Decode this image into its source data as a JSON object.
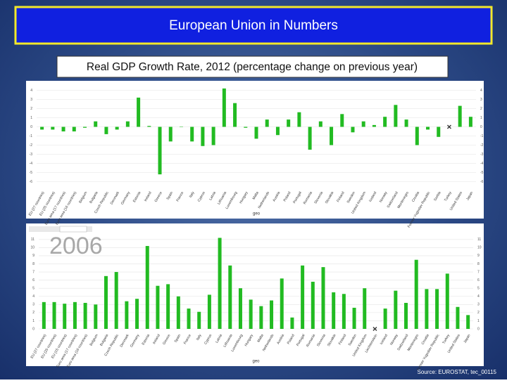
{
  "slide": {
    "title": "European Union in Numbers",
    "subtitle": "Real GDP Growth Rate, 2012 (percentage change on previous year)",
    "source": "Source: EUROSTAT, tec_00115"
  },
  "chart_data": [
    {
      "type": "bar",
      "color": "#22bb22",
      "x_label": "geo",
      "categories": [
        "EU (27 countries)",
        "EU (25 countries)",
        "Euro area (17 countries)",
        "Euro area (16 countries)",
        "Belgium",
        "Bulgaria",
        "Czech Republic",
        "Denmark",
        "Germany",
        "Estonia",
        "Ireland",
        "Greece",
        "Spain",
        "France",
        "Italy",
        "Cyprus",
        "Latvia",
        "Lithuania",
        "Luxembourg",
        "Hungary",
        "Malta",
        "Netherlands",
        "Austria",
        "Poland",
        "Portugal",
        "Romania",
        "Slovenia",
        "Slovakia",
        "Finland",
        "Sweden",
        "United Kingdom",
        "Iceland",
        "Norway",
        "Switzerland",
        "Montenegro",
        "Croatia",
        "Former Yugoslav Republic",
        "Serbia",
        "Turkey",
        "United States",
        "Japan"
      ],
      "values": [
        -0.3,
        -0.3,
        -0.5,
        -0.5,
        -0.1,
        0.6,
        -0.8,
        -0.3,
        0.6,
        3.2,
        0.1,
        -5.2,
        -1.6,
        0,
        -1.6,
        -2.1,
        -2,
        4.2,
        2.6,
        -0.1,
        -1.3,
        0.8,
        -0.9,
        0.8,
        1.6,
        -2.5,
        0.6,
        -2,
        1.4,
        -0.6,
        0.6,
        0.2,
        1.1,
        2.4,
        0.8,
        -2,
        -0.3,
        -1.1,
        null,
        2.3,
        1.1
      ],
      "ylim": [
        -6.5,
        4.5
      ],
      "yticks": [
        -6,
        -5,
        -4,
        -3,
        -2,
        -1,
        0,
        1,
        2,
        3,
        4
      ],
      "grid": true
    },
    {
      "type": "bar",
      "color": "#22bb22",
      "x_label": "geo",
      "annotation": "2006",
      "categories": [
        "EU (27 countries)",
        "EU (25 countries)",
        "EU (15 countries)",
        "Euro area (17 countries)",
        "Euro area (16 countries)",
        "Belgium",
        "Bulgaria",
        "Czech Republic",
        "Denmark",
        "Germany",
        "Estonia",
        "Ireland",
        "Greece",
        "Spain",
        "France",
        "Italy",
        "Cyprus",
        "Latvia",
        "Lithuania",
        "Luxembourg",
        "Hungary",
        "Malta",
        "Netherlands",
        "Austria",
        "Poland",
        "Portugal",
        "Romania",
        "Slovenia",
        "Slovakia",
        "Finland",
        "Sweden",
        "United Kingdom",
        "Liechtenstein",
        "Iceland",
        "Norway",
        "Switzerland",
        "Montenegro",
        "Croatia",
        "Former Yugoslav Republic",
        "Turkey",
        "United States",
        "Japan"
      ],
      "values": [
        3.3,
        3.3,
        3.1,
        3.3,
        3.2,
        3.0,
        6.5,
        7.0,
        3.4,
        3.7,
        10.2,
        5.3,
        5.5,
        4.0,
        2.5,
        2.1,
        4.2,
        11.2,
        7.8,
        5.0,
        3.6,
        2.8,
        3.5,
        6.2,
        1.4,
        7.8,
        5.8,
        7.6,
        4.5,
        4.3,
        2.6,
        5.0,
        null,
        2.5,
        4.7,
        3.2,
        8.5,
        4.9,
        4.9,
        6.8,
        2.7,
        1.7
      ],
      "ylim": [
        0,
        11.5
      ],
      "yticks": [
        0,
        1,
        2,
        3,
        4,
        5,
        6,
        7,
        8,
        9,
        10,
        11
      ],
      "grid": true
    }
  ]
}
